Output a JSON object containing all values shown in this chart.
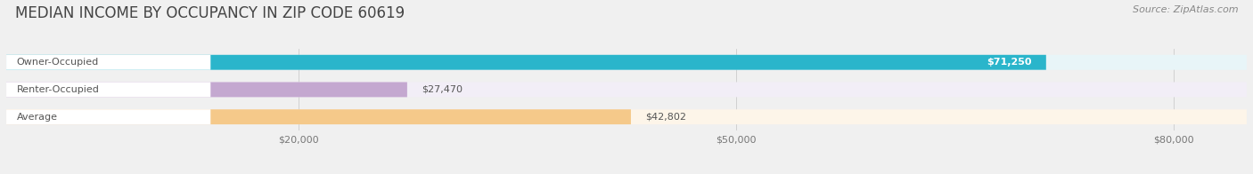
{
  "title": "MEDIAN INCOME BY OCCUPANCY IN ZIP CODE 60619",
  "source": "Source: ZipAtlas.com",
  "categories": [
    "Owner-Occupied",
    "Renter-Occupied",
    "Average"
  ],
  "values": [
    71250,
    27470,
    42802
  ],
  "labels": [
    "$71,250",
    "$27,470",
    "$42,802"
  ],
  "label_colors": [
    "#ffffff",
    "#555555",
    "#555555"
  ],
  "label_inside": [
    true,
    false,
    false
  ],
  "bar_colors": [
    "#2ab5cb",
    "#c4a8d0",
    "#f5c98a"
  ],
  "bar_bg_colors": [
    "#e8f5f8",
    "#f2eef7",
    "#fdf5e9"
  ],
  "xlim": [
    0,
    85000
  ],
  "xticks": [
    20000,
    50000,
    80000
  ],
  "xticklabels": [
    "$20,000",
    "$50,000",
    "$80,000"
  ],
  "figsize": [
    14.06,
    1.96
  ],
  "dpi": 100,
  "title_fontsize": 12,
  "source_fontsize": 8,
  "label_fontsize": 8,
  "cat_fontsize": 8,
  "bar_height": 0.55,
  "background_color": "#f0f0f0"
}
